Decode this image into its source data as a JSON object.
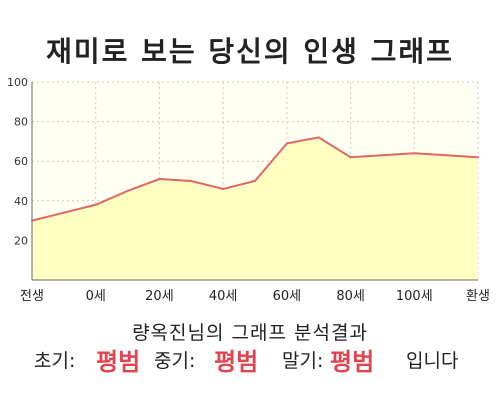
{
  "title": "재미로 보는 당신의 인생 그래프",
  "result": {
    "heading": "량옥진님의 그래프 분석결과",
    "early_label": "초기:",
    "early_value": "평범",
    "mid_label": "중기:",
    "mid_value": "평범",
    "late_label": "말기:",
    "late_value": "평범",
    "suffix": "입니다"
  },
  "colors": {
    "plot_bg": "#fffff2",
    "area_fill": "#ffffc2",
    "line": "#e06666",
    "accent_text": "#e0444f"
  },
  "chart_data": {
    "type": "area",
    "title": "재미로 보는 당신의 인생 그래프",
    "xlabel": "",
    "ylabel": "",
    "ylim": [
      0,
      100
    ],
    "yticks": [
      20,
      40,
      60,
      80,
      100
    ],
    "xtick_labels": [
      "전생",
      "0세",
      "20세",
      "40세",
      "60세",
      "80세",
      "100세",
      "환생"
    ],
    "x_categories": [
      "전생",
      "",
      "0세",
      "",
      "20세",
      "",
      "40세",
      "",
      "60세",
      "",
      "80세",
      "",
      "100세",
      "",
      "환생"
    ],
    "values": [
      30,
      34,
      38,
      45,
      51,
      50,
      46,
      50,
      69,
      72,
      62,
      63,
      64,
      63,
      62
    ],
    "grid": true
  }
}
